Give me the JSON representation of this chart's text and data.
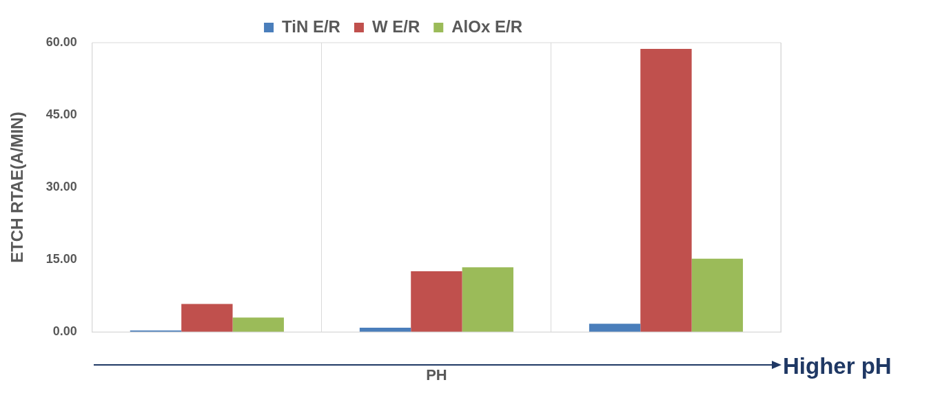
{
  "chart_data": {
    "type": "bar",
    "xlabel": "PH",
    "ylabel": "ETCH RTAE(A/MIN)",
    "categories": [
      null,
      null,
      null
    ],
    "series": [
      {
        "name": "TiN E/R",
        "color": "#4a7ebb",
        "values": [
          0.3,
          0.9,
          1.7
        ]
      },
      {
        "name": "W E/R",
        "color": "#c0504d",
        "values": [
          5.8,
          12.6,
          58.7
        ]
      },
      {
        "name": "AlOx E/R",
        "color": "#9bbb59",
        "values": [
          3.0,
          13.4,
          15.2
        ]
      }
    ],
    "ylim": [
      0,
      60
    ],
    "yticks": [
      {
        "value": 0,
        "label": "0.00"
      },
      {
        "value": 15,
        "label": "15.00"
      },
      {
        "value": 30,
        "label": "30.00"
      },
      {
        "value": 45,
        "label": "45.00"
      },
      {
        "value": 60,
        "label": "60.00"
      }
    ],
    "grid": "x",
    "legend": "top",
    "annotations": [
      "Higher pH"
    ]
  }
}
